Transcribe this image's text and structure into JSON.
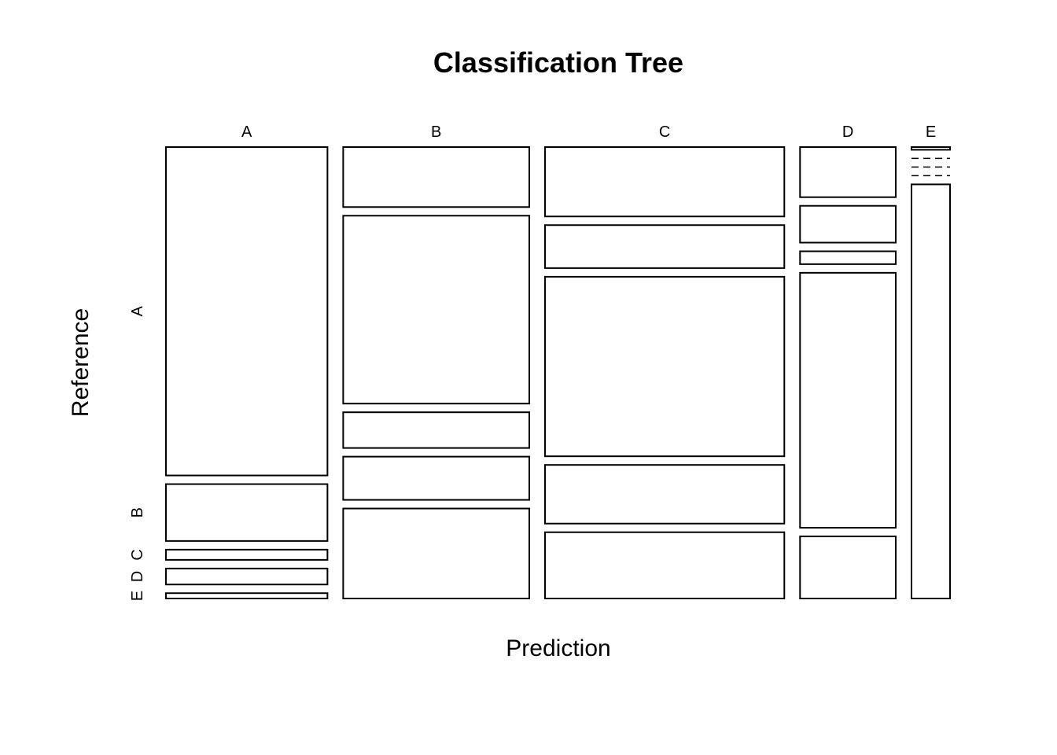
{
  "chart_data": {
    "type": "mosaic",
    "title": "Classification Tree",
    "xlabel": "Prediction",
    "ylabel": "Reference",
    "x_categories": [
      "A",
      "B",
      "C",
      "D",
      "E"
    ],
    "y_categories": [
      "A",
      "B",
      "C",
      "D",
      "E"
    ],
    "column_proportions": [
      0.243,
      0.28,
      0.36,
      0.144,
      0.058
    ],
    "cell_proportions": [
      [
        0.739,
        0.128,
        0.023,
        0.036,
        0.012
      ],
      [
        0.136,
        0.426,
        0.081,
        0.098,
        0.204
      ],
      [
        0.155,
        0.096,
        0.401,
        0.131,
        0.148
      ],
      [
        0.113,
        0.083,
        0.029,
        0.575,
        0.14
      ],
      [
        0.006,
        0.0,
        0.0,
        0.0,
        0.92
      ]
    ],
    "zero_cells": [
      [
        4,
        1
      ],
      [
        4,
        2
      ],
      [
        4,
        3
      ]
    ],
    "grid": false,
    "legend": "none"
  }
}
